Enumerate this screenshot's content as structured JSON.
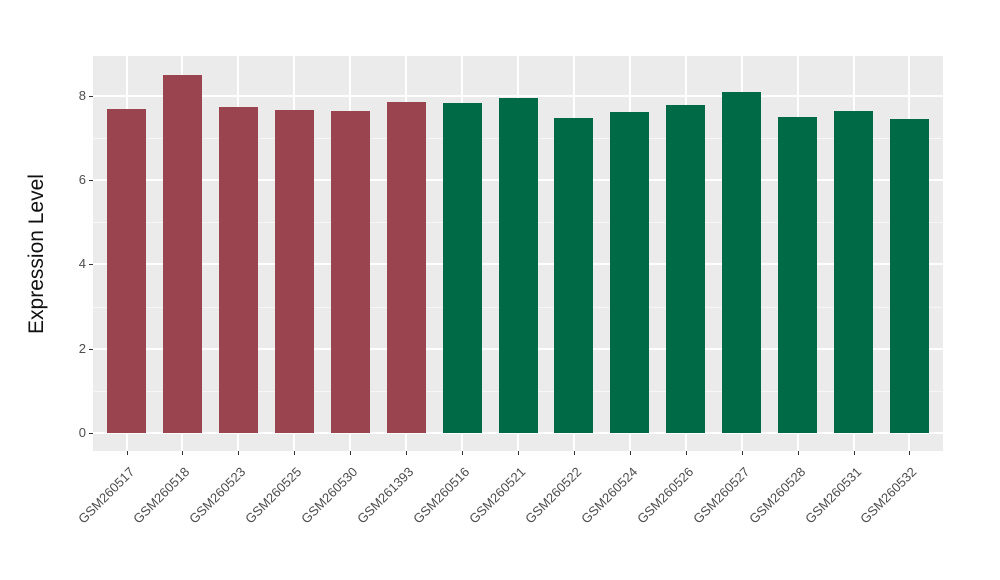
{
  "chart_data": {
    "type": "bar",
    "title": "",
    "xlabel": "",
    "ylabel": "Expression Level",
    "categories": [
      "GSM260517",
      "GSM260518",
      "GSM260523",
      "GSM260525",
      "GSM260530",
      "GSM261393",
      "GSM260516",
      "GSM260521",
      "GSM260522",
      "GSM260524",
      "GSM260526",
      "GSM260527",
      "GSM260528",
      "GSM260531",
      "GSM260532"
    ],
    "values": [
      7.69,
      8.49,
      7.73,
      7.67,
      7.63,
      7.85,
      7.83,
      7.94,
      7.47,
      7.62,
      7.79,
      8.08,
      7.5,
      7.63,
      7.44
    ],
    "groups": [
      "A",
      "A",
      "A",
      "A",
      "A",
      "A",
      "B",
      "B",
      "B",
      "B",
      "B",
      "B",
      "B",
      "B",
      "B"
    ],
    "group_colors": {
      "A": "#9A4450",
      "B": "#006946"
    },
    "bar_colors": [
      "#9A4450",
      "#9A4450",
      "#9A4450",
      "#9A4450",
      "#9A4450",
      "#9A4450",
      "#006946",
      "#006946",
      "#006946",
      "#006946",
      "#006946",
      "#006946",
      "#006946",
      "#006946",
      "#006946"
    ],
    "yticks": [
      0,
      2,
      4,
      6,
      8
    ],
    "ylim": [
      0,
      8.95
    ],
    "grid": true,
    "legend": "none",
    "style": {
      "panel_bg": "#EBEBEB",
      "grid_color": "#FFFFFF",
      "tick_label_color": "#4D4D4D",
      "tick_mark_color": "#333333",
      "axis_title_color": "#111111",
      "background": "#FFFFFF"
    }
  }
}
